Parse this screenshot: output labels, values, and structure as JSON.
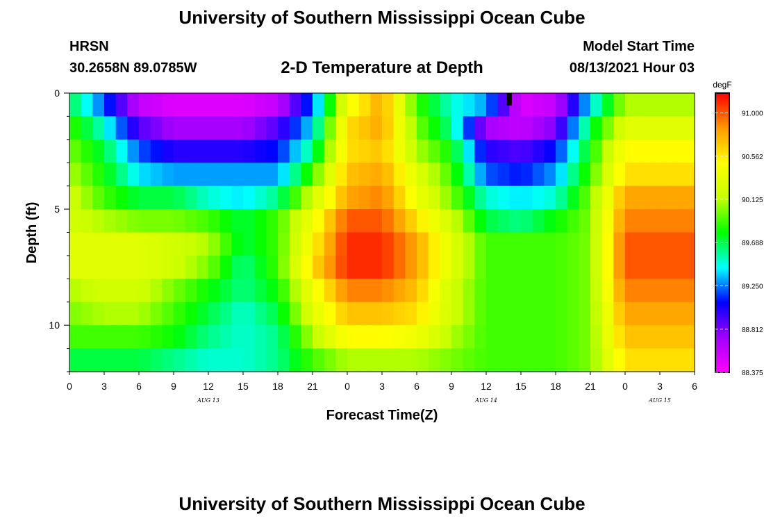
{
  "page": {
    "title_top": "University of Southern Mississippi Ocean Cube",
    "title_bottom": "University of Southern Mississippi Ocean Cube",
    "station": "HRSN",
    "coords": "30.2658N  89.0785W",
    "plot_title": "2-D Temperature at Depth",
    "model_label": "Model Start Time",
    "model_time": "08/13/2021 Hour 03"
  },
  "colors": {
    "scale": [
      "#ff00ff",
      "#a000ff",
      "#0000ff",
      "#00ffff",
      "#00ff00",
      "#c8ff00",
      "#ffff00",
      "#ff9900",
      "#ff0000"
    ],
    "marker": "#000000"
  },
  "chart_data": {
    "type": "heatmap",
    "title": "2-D Temperature at Depth",
    "xlabel": "Forecast Time(Z)",
    "ylabel": "Depth (ft)",
    "x_tick_labels": [
      "0",
      "3",
      "6",
      "9",
      "12",
      "15",
      "18",
      "21",
      "0",
      "3",
      "6",
      "9",
      "12",
      "15",
      "18",
      "21",
      "0",
      "3",
      "6"
    ],
    "x_range_hours": [
      0,
      54
    ],
    "date_labels": [
      {
        "label": "AUG 13",
        "hour": 12
      },
      {
        "label": "AUG 14",
        "hour": 36
      },
      {
        "label": "AUG 15",
        "hour": 51
      }
    ],
    "y_range_ft": [
      0,
      12
    ],
    "y_ticks": [
      0,
      5,
      10
    ],
    "y_minor_step": 1,
    "depth_layers_ft": [
      0,
      1,
      2,
      3,
      4,
      5,
      6,
      7,
      8,
      9,
      10,
      11
    ],
    "hours": [
      0,
      3,
      6,
      9,
      12,
      15,
      18,
      21,
      24,
      27,
      30,
      33,
      36,
      39,
      42,
      45,
      48,
      51,
      54
    ],
    "temperature_degF": [
      [
        89.7,
        89.2,
        88.6,
        88.5,
        88.5,
        88.5,
        88.6,
        89.2,
        90.4,
        90.8,
        89.9,
        89.5,
        89.3,
        88.5,
        88.6,
        89.4,
        90.1,
        90.1,
        90.1
      ],
      [
        89.9,
        89.5,
        88.9,
        88.7,
        88.7,
        88.7,
        88.9,
        89.4,
        90.6,
        90.8,
        90.0,
        89.6,
        88.7,
        88.6,
        88.8,
        89.7,
        90.3,
        90.3,
        90.3
      ],
      [
        90.0,
        89.7,
        89.2,
        89.0,
        89.0,
        89.0,
        89.1,
        89.6,
        90.6,
        90.7,
        90.1,
        89.8,
        89.0,
        88.9,
        89.1,
        89.8,
        90.5,
        90.5,
        90.5
      ],
      [
        90.1,
        89.8,
        89.4,
        89.3,
        89.3,
        89.3,
        89.3,
        89.9,
        90.7,
        90.8,
        90.3,
        89.9,
        89.2,
        89.1,
        89.3,
        89.9,
        90.6,
        90.6,
        90.6
      ],
      [
        90.2,
        89.9,
        89.7,
        89.7,
        89.5,
        89.4,
        89.6,
        90.2,
        90.8,
        90.9,
        90.4,
        90.0,
        89.5,
        89.4,
        89.5,
        90.0,
        90.8,
        90.8,
        90.8
      ],
      [
        90.2,
        90.1,
        90.0,
        90.0,
        89.9,
        89.7,
        89.9,
        90.4,
        91.0,
        91.0,
        90.6,
        90.2,
        89.7,
        89.6,
        89.8,
        90.0,
        90.9,
        90.9,
        90.9
      ],
      [
        90.3,
        90.3,
        90.3,
        90.2,
        90.1,
        89.7,
        89.9,
        90.5,
        91.1,
        91.1,
        90.8,
        90.3,
        89.9,
        89.9,
        89.9,
        90.0,
        91.0,
        91.0,
        91.0
      ],
      [
        90.3,
        90.3,
        90.3,
        90.2,
        90.0,
        89.6,
        89.9,
        90.6,
        91.1,
        91.1,
        90.8,
        90.3,
        89.9,
        89.9,
        89.9,
        90.0,
        91.0,
        91.0,
        91.0
      ],
      [
        90.1,
        90.2,
        90.2,
        90.0,
        89.8,
        89.6,
        89.8,
        90.4,
        90.9,
        90.9,
        90.7,
        90.2,
        89.9,
        89.9,
        89.9,
        90.0,
        90.9,
        90.9,
        90.9
      ],
      [
        90.0,
        90.1,
        90.1,
        89.9,
        89.7,
        89.5,
        89.7,
        90.3,
        90.7,
        90.7,
        90.6,
        90.2,
        89.9,
        89.9,
        89.9,
        90.0,
        90.8,
        90.8,
        90.8
      ],
      [
        89.9,
        89.9,
        89.9,
        89.8,
        89.6,
        89.5,
        89.6,
        90.1,
        90.5,
        90.5,
        90.4,
        90.1,
        89.9,
        89.9,
        89.9,
        90.0,
        90.7,
        90.7,
        90.7
      ],
      [
        89.7,
        89.7,
        89.7,
        89.6,
        89.5,
        89.5,
        89.6,
        89.9,
        90.1,
        90.1,
        90.1,
        90.0,
        89.9,
        89.9,
        89.9,
        90.0,
        90.6,
        90.6,
        90.6
      ]
    ],
    "colorbar": {
      "unit": "degF",
      "min": 88.375,
      "max": 91.2,
      "tick_labels": [
        "91.000",
        "90.562",
        "90.125",
        "89.688",
        "89.250",
        "88.812",
        "88.375"
      ],
      "tick_values": [
        91.0,
        90.562,
        90.125,
        89.688,
        89.25,
        88.812,
        88.375
      ]
    },
    "current_time_marker_hour": 38
  }
}
